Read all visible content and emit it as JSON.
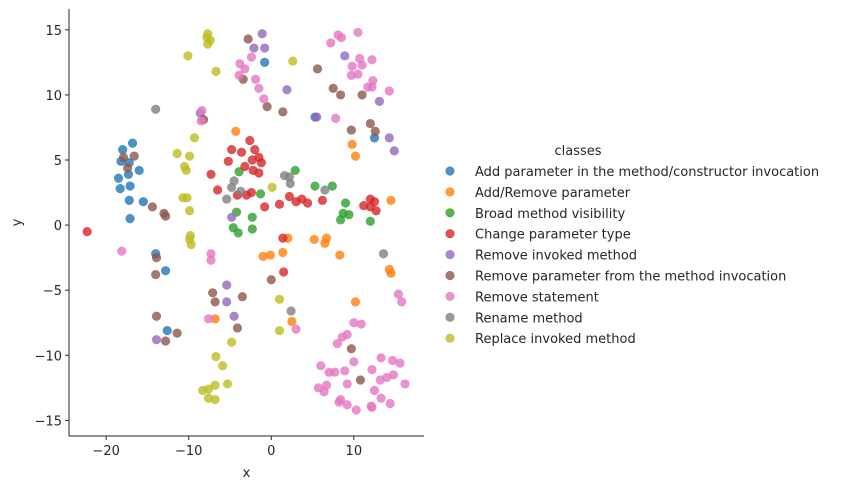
{
  "chart_data": {
    "type": "scatter",
    "xlabel": "x",
    "ylabel": "y",
    "xlim": [
      -24.5,
      18.5
    ],
    "ylim": [
      -16.2,
      16.6
    ],
    "xticks": [
      -20,
      -10,
      0,
      10
    ],
    "yticks": [
      -15,
      -10,
      -5,
      0,
      5,
      10,
      15
    ],
    "grid": false,
    "legend": {
      "title": "classes",
      "position": "right"
    },
    "series": [
      {
        "name": "Add parameter in the method/constructor invocation",
        "color": "#1f77b4",
        "points": [
          [
            -18,
            5.8
          ],
          [
            -16.8,
            6.3
          ],
          [
            -18.2,
            4.9
          ],
          [
            -17.2,
            4.8
          ],
          [
            -16,
            4.2
          ],
          [
            -17.3,
            3.9
          ],
          [
            -18.5,
            3.6
          ],
          [
            -17.1,
            3.0
          ],
          [
            -18.3,
            2.8
          ],
          [
            -17.2,
            1.9
          ],
          [
            -15.5,
            1.8
          ],
          [
            -17.1,
            0.5
          ],
          [
            -14,
            -2.2
          ],
          [
            -12.8,
            -3.5
          ],
          [
            -12.6,
            -8.1
          ],
          [
            -0.8,
            12.5
          ],
          [
            5.3,
            8.3
          ],
          [
            12.5,
            6.7
          ]
        ]
      },
      {
        "name": "Add/Remove parameter",
        "color": "#ff7f0e",
        "points": [
          [
            -4.3,
            7.2
          ],
          [
            9.8,
            6.2
          ],
          [
            10.2,
            5.3
          ],
          [
            14.5,
            1.9
          ],
          [
            -0.1,
            -2.3
          ],
          [
            -1,
            -2.4
          ],
          [
            1.4,
            -2.1
          ],
          [
            2,
            -1.0
          ],
          [
            5.2,
            -1.1
          ],
          [
            6.7,
            -1.0
          ],
          [
            6.5,
            -1.4
          ],
          [
            8.3,
            -2.3
          ],
          [
            14.3,
            -3.4
          ],
          [
            14.5,
            -3.7
          ],
          [
            10.2,
            -5.9
          ],
          [
            -6.8,
            -7.2
          ],
          [
            2.5,
            -7.4
          ]
        ]
      },
      {
        "name": "Broad method visibility",
        "color": "#2ca02c",
        "points": [
          [
            2.9,
            4.2
          ],
          [
            -3.9,
            4.1
          ],
          [
            5.3,
            3.0
          ],
          [
            7.4,
            3.0
          ],
          [
            -1.3,
            2.4
          ],
          [
            9,
            1.7
          ],
          [
            -4.2,
            1.0
          ],
          [
            8.7,
            0.9
          ],
          [
            9.4,
            0.8
          ],
          [
            -2.3,
            0.6
          ],
          [
            8.4,
            0.4
          ],
          [
            12,
            0.3
          ],
          [
            -4.6,
            -0.2
          ],
          [
            -2.3,
            -0.3
          ],
          [
            -4,
            -0.6
          ]
        ]
      },
      {
        "name": "Change parameter type",
        "color": "#d62728",
        "points": [
          [
            -22.3,
            -0.5
          ],
          [
            -2.6,
            6.5
          ],
          [
            -4.8,
            5.8
          ],
          [
            -3.6,
            5.6
          ],
          [
            -1.5,
            5.2
          ],
          [
            -2,
            5.8
          ],
          [
            -5.2,
            4.9
          ],
          [
            -1.2,
            4.8
          ],
          [
            -2.3,
            5.0
          ],
          [
            -3.2,
            4.5
          ],
          [
            -7.3,
            3.9
          ],
          [
            -2.2,
            4.2
          ],
          [
            -1.5,
            4.0
          ],
          [
            -6.5,
            2.7
          ],
          [
            -4.1,
            2.3
          ],
          [
            -3,
            2.3
          ],
          [
            -2.4,
            2.5
          ],
          [
            2.2,
            2.2
          ],
          [
            3,
            1.8
          ],
          [
            3.7,
            2.0
          ],
          [
            4.4,
            1.7
          ],
          [
            6.2,
            1.9
          ],
          [
            11.2,
            1.5
          ],
          [
            12,
            2.0
          ],
          [
            12.5,
            1.8
          ],
          [
            12.7,
            1.1
          ],
          [
            12,
            1.4
          ],
          [
            -0.8,
            1.4
          ],
          [
            1,
            1.6
          ],
          [
            1.4,
            -1.0
          ],
          [
            1.5,
            -3.6
          ]
        ]
      },
      {
        "name": "Remove invoked method",
        "color": "#9467bd",
        "points": [
          [
            -1.1,
            14.7
          ],
          [
            -2.1,
            13.6
          ],
          [
            -0.8,
            13.6
          ],
          [
            8.9,
            13.0
          ],
          [
            1.9,
            10.4
          ],
          [
            13.1,
            9.5
          ],
          [
            5.5,
            8.3
          ],
          [
            -8.6,
            8.6
          ],
          [
            14.3,
            6.7
          ],
          [
            14.9,
            5.7
          ],
          [
            -4.8,
            0.6
          ],
          [
            -5.4,
            -4.6
          ],
          [
            -5.4,
            -5.9
          ],
          [
            -4.5,
            -7.0
          ],
          [
            -13.9,
            -8.8
          ]
        ]
      },
      {
        "name": "Remove parameter from the method invocation",
        "color": "#8c564b",
        "points": [
          [
            -2.8,
            14.3
          ],
          [
            5.6,
            12.0
          ],
          [
            -3.4,
            11.2
          ],
          [
            7.5,
            10.5
          ],
          [
            8.4,
            10.0
          ],
          [
            11,
            10.0
          ],
          [
            -0.5,
            9.1
          ],
          [
            1.4,
            8.7
          ],
          [
            -8.2,
            8.1
          ],
          [
            12,
            7.8
          ],
          [
            9.7,
            7.3
          ],
          [
            12.6,
            7.2
          ],
          [
            -17.9,
            5.2
          ],
          [
            -16.6,
            5.3
          ],
          [
            -17.4,
            4.4
          ],
          [
            -14.4,
            1.4
          ],
          [
            -13,
            0.9
          ],
          [
            -12.8,
            0.7
          ],
          [
            -13.9,
            -2.5
          ],
          [
            -14,
            -3.8
          ],
          [
            -7.1,
            -5.2
          ],
          [
            -3.5,
            -5.5
          ],
          [
            -6.8,
            -5.9
          ],
          [
            0,
            -4.2
          ],
          [
            -13.9,
            -7.0
          ],
          [
            -4.1,
            -7.9
          ],
          [
            -11.4,
            -8.3
          ],
          [
            -12.8,
            -8.9
          ],
          [
            9.7,
            -9.5
          ],
          [
            10.8,
            -11.9
          ]
        ]
      },
      {
        "name": "Remove statement",
        "color": "#e377c2",
        "points": [
          [
            10.5,
            14.8
          ],
          [
            8.1,
            14.6
          ],
          [
            8.5,
            14.4
          ],
          [
            -2.4,
            12.9
          ],
          [
            7.2,
            14.0
          ],
          [
            10.7,
            12.8
          ],
          [
            12.2,
            12.7
          ],
          [
            11,
            12.3
          ],
          [
            9.8,
            12.2
          ],
          [
            -3.8,
            12.4
          ],
          [
            -3.2,
            12.0
          ],
          [
            9.7,
            11.5
          ],
          [
            10.5,
            11.6
          ],
          [
            12.3,
            11.1
          ],
          [
            -3.9,
            11.5
          ],
          [
            -1.9,
            11.2
          ],
          [
            12.2,
            10.6
          ],
          [
            11.7,
            10.6
          ],
          [
            -1.5,
            10.5
          ],
          [
            14.3,
            10.3
          ],
          [
            -0.9,
            9.7
          ],
          [
            7.8,
            8.2
          ],
          [
            -8.4,
            8.8
          ],
          [
            -8.5,
            8.0
          ],
          [
            -18.1,
            -2.0
          ],
          [
            -7.3,
            -2.2
          ],
          [
            -7.3,
            -2.7
          ],
          [
            15.4,
            -5.3
          ],
          [
            15.8,
            -5.9
          ],
          [
            -7.6,
            -7.2
          ],
          [
            3,
            -8.0
          ],
          [
            10,
            -7.5
          ],
          [
            10.9,
            -7.6
          ],
          [
            9.2,
            -8.4
          ],
          [
            8.6,
            -8.6
          ],
          [
            8,
            -9.1
          ],
          [
            6,
            -10.8
          ],
          [
            7,
            -11.3
          ],
          [
            7.7,
            -11.3
          ],
          [
            8.9,
            -11.2
          ],
          [
            10,
            -10.5
          ],
          [
            12.2,
            -11.1
          ],
          [
            13.3,
            -10.2
          ],
          [
            14.7,
            -10.4
          ],
          [
            15.6,
            -10.6
          ],
          [
            13.2,
            -11.9
          ],
          [
            14,
            -11.7
          ],
          [
            14.8,
            -11.5
          ],
          [
            16.2,
            -12.2
          ],
          [
            5.7,
            -12.5
          ],
          [
            6.7,
            -12.3
          ],
          [
            9.2,
            -12.2
          ],
          [
            6.4,
            -12.8
          ],
          [
            12.5,
            -12.7
          ],
          [
            8.2,
            -13.6
          ],
          [
            8.4,
            -13.4
          ],
          [
            9.2,
            -13.8
          ],
          [
            13.3,
            -13.3
          ],
          [
            14.4,
            -13.7
          ],
          [
            10.3,
            -14.2
          ],
          [
            12.1,
            -13.9
          ],
          [
            12.2,
            -14.0
          ]
        ]
      },
      {
        "name": "Rename method",
        "color": "#7f7f7f",
        "points": [
          [
            -14,
            8.9
          ],
          [
            1.6,
            3.8
          ],
          [
            2.2,
            3.7
          ],
          [
            2.3,
            3.2
          ],
          [
            6.5,
            2.7
          ],
          [
            -4.5,
            3.4
          ],
          [
            -4.8,
            2.9
          ],
          [
            -3.7,
            2.6
          ],
          [
            -5.4,
            2.0
          ],
          [
            13.6,
            -2.2
          ],
          [
            2.4,
            -6.6
          ]
        ]
      },
      {
        "name": "Replace invoked method",
        "color": "#bcbd22",
        "points": [
          [
            -7.7,
            14.7
          ],
          [
            -7.8,
            14.4
          ],
          [
            -7.4,
            14.2
          ],
          [
            -7.7,
            13.9
          ],
          [
            -10.1,
            13.0
          ],
          [
            2.6,
            12.6
          ],
          [
            -6.7,
            11.8
          ],
          [
            -9.3,
            6.7
          ],
          [
            -11.4,
            5.5
          ],
          [
            -9.9,
            5.3
          ],
          [
            -10.5,
            4.5
          ],
          [
            -10.3,
            4.2
          ],
          [
            0.1,
            2.9
          ],
          [
            -10.7,
            2.1
          ],
          [
            -10.2,
            2.1
          ],
          [
            -9.9,
            1.1
          ],
          [
            -9.8,
            -0.8
          ],
          [
            -9.9,
            -1.1
          ],
          [
            -9.7,
            -1.5
          ],
          [
            1,
            -5.7
          ],
          [
            -4.8,
            -9.0
          ],
          [
            1,
            -8.1
          ],
          [
            -6.7,
            -10.1
          ],
          [
            -5.9,
            -10.8
          ],
          [
            -8.3,
            -12.7
          ],
          [
            -7.6,
            -12.6
          ],
          [
            -6.8,
            -12.3
          ],
          [
            -5.3,
            -12.2
          ],
          [
            -7.6,
            -13.3
          ],
          [
            -6.8,
            -13.4
          ]
        ]
      }
    ]
  }
}
